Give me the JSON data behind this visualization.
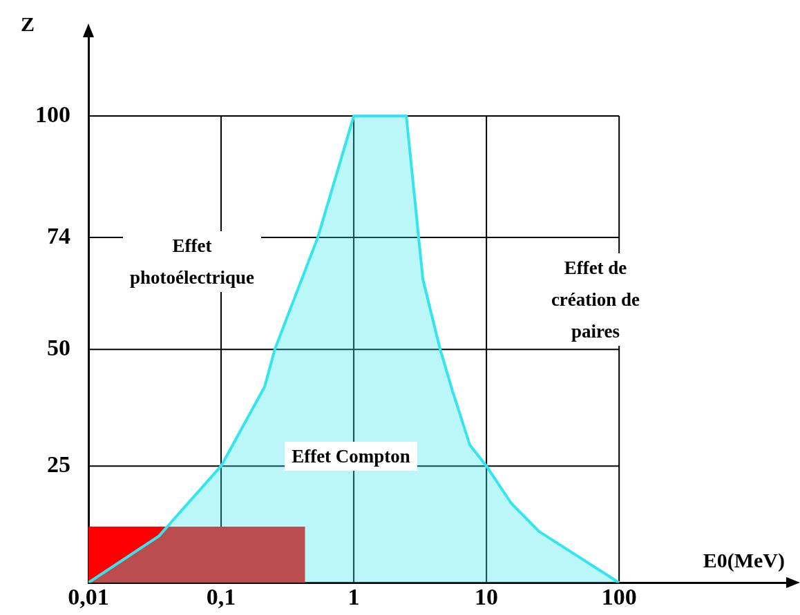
{
  "chart_data": {
    "type": "area",
    "ylabel": "Z",
    "xlabel": "E0(MeV)",
    "log": "x",
    "grid": true,
    "xlim": [
      0.01,
      2000
    ],
    "ylim": [
      0,
      118
    ],
    "xticks": [
      {
        "value": 0.01,
        "label": "0,01"
      },
      {
        "value": 0.1,
        "label": "0,1"
      },
      1,
      10,
      100
    ],
    "yticks": [
      25,
      50,
      74,
      100
    ],
    "series": [
      {
        "color": "#33e6ee",
        "x": [
          0.01,
          0.034,
          0.1,
          0.213,
          0.254,
          0.536,
          1,
          2.49,
          3.32,
          4.48,
          5.56,
          7.5,
          10,
          15.4,
          24.9,
          100
        ],
        "values": [
          0,
          10,
          25,
          42,
          50,
          74,
          100,
          100,
          65,
          50,
          41,
          29.5,
          25,
          17,
          11,
          0
        ]
      },
      {
        "color": "#ff0000",
        "x": [
          0.01,
          0.43
        ],
        "values": [
          12,
          12
        ]
      }
    ],
    "annotations": [
      "Effet photoélectrique",
      "Effet de création de paires",
      "Effet Compton"
    ]
  }
}
